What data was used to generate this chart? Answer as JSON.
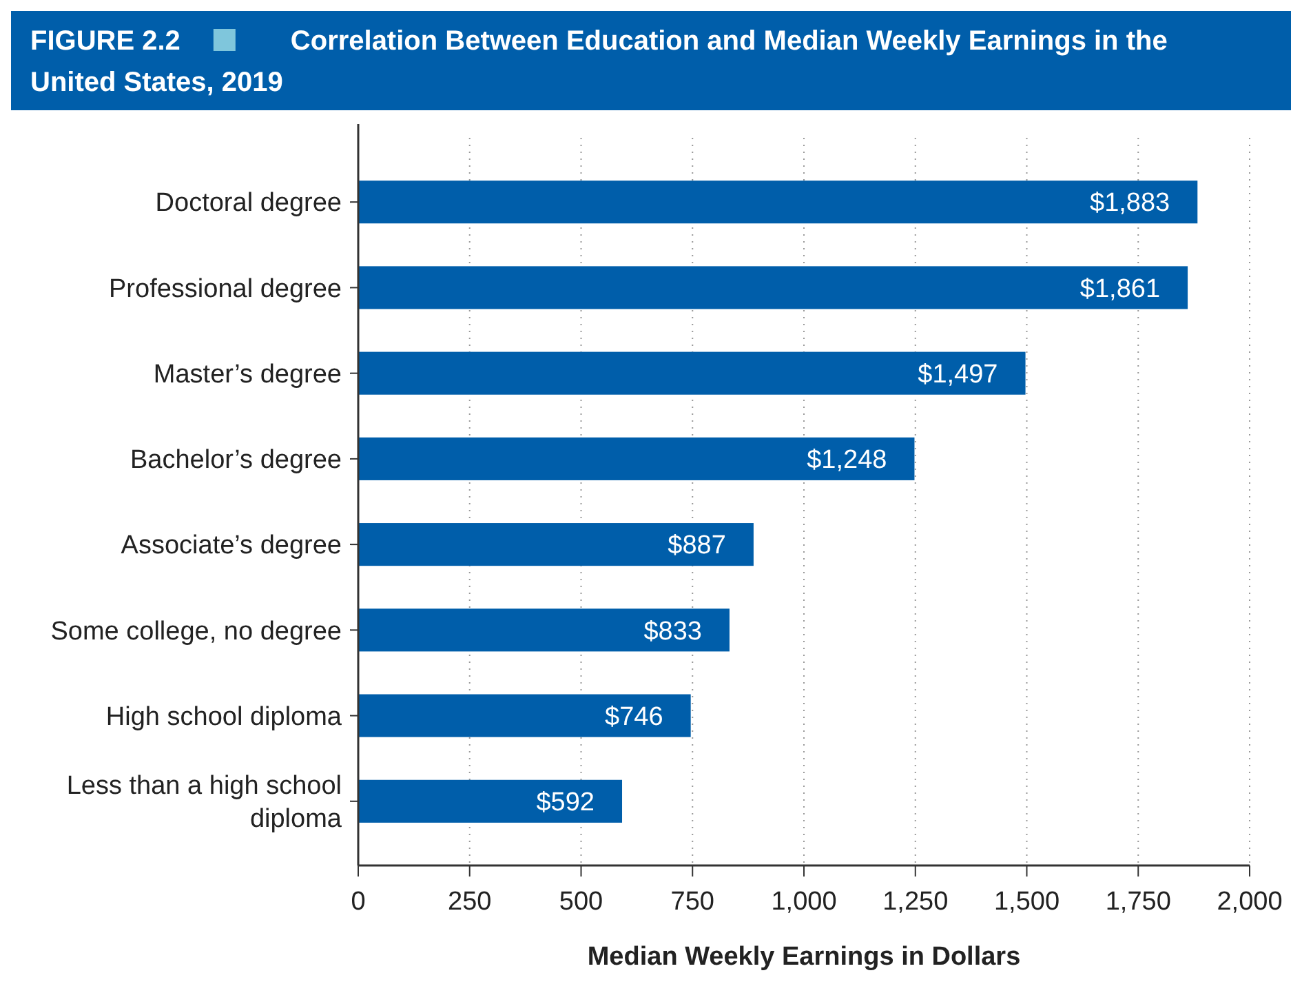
{
  "chart_data": {
    "type": "bar",
    "orientation": "horizontal",
    "title": "Correlation Between Education and Median Weekly Earnings in the United States, 2019",
    "annotations": [
      "FIGURE 2.2"
    ],
    "xlabel": "Median Weekly Earnings in Dollars",
    "categories": [
      "Doctoral degree",
      "Professional degree",
      "Master’s degree",
      "Bachelor’s degree",
      "Associate’s degree",
      "Some college, no degree",
      "High school diploma",
      "Less than a high school diploma"
    ],
    "values": [
      1883,
      1861,
      1497,
      1248,
      887,
      833,
      746,
      592
    ],
    "value_labels": [
      "$1,883",
      "$1,861",
      "$1,497",
      "$1,248",
      "$887",
      "$833",
      "$746",
      "$592"
    ],
    "color": "#005eaa",
    "xlim": [
      0,
      2000
    ],
    "xticks": [
      0,
      {
        "value": 250,
        "label": "250"
      },
      {
        "value": 500,
        "label": "500"
      },
      {
        "value": 750,
        "label": "750"
      },
      {
        "value": 1000,
        "label": "1,000"
      },
      {
        "value": 1250,
        "label": "1,250"
      },
      {
        "value": 1500,
        "label": "1,500"
      },
      {
        "value": 1750,
        "label": "1,750"
      },
      {
        "value": 2000,
        "label": "2,000"
      }
    ],
    "grid": "x"
  }
}
